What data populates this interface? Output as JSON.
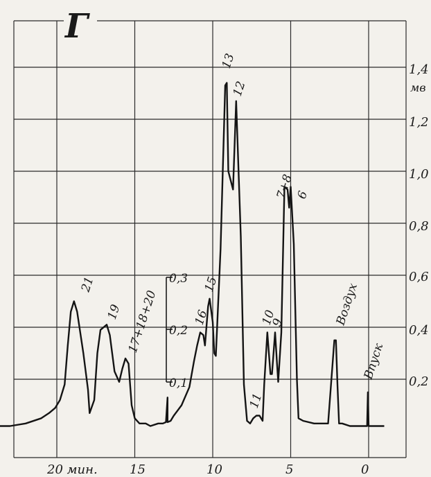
{
  "panel_letter": "Г",
  "chart_data": {
    "type": "line",
    "x_ticks": [
      "20 мин.",
      "15",
      "10",
      "5",
      "0"
    ],
    "y_ticks": [
      "0,2",
      "0,4",
      "0,6",
      "0,8",
      "1,0",
      "1,2",
      "1,4"
    ],
    "y_unit": "мв",
    "inset_scale_ticks": [
      "0,1",
      "0,2",
      "0,3"
    ],
    "xlim": [
      24.5,
      0
    ],
    "ylim": [
      0,
      1.5
    ],
    "grid": true,
    "series": [
      {
        "x": [
          24.2,
          23.0,
          22.0,
          21.0,
          20.5,
          20.1,
          19.8,
          19.5,
          19.3,
          19.1,
          18.9,
          18.7,
          18.3,
          18.0,
          17.9,
          17.6,
          17.4,
          17.2,
          16.8,
          16.6,
          16.3,
          16.0,
          15.8,
          15.6,
          15.4,
          15.2,
          15.0,
          14.7,
          14.3,
          14.0,
          13.5,
          13.2,
          13.0,
          12.9,
          12.9,
          12.7,
          12.6,
          12.5,
          12.0,
          11.5,
          11.2,
          11.0,
          10.8,
          10.6,
          10.5,
          10.3,
          10.2,
          10.0,
          9.9,
          9.8,
          9.5,
          9.2,
          9.1,
          9.0,
          8.7,
          8.5,
          8.2,
          8.0,
          7.8,
          7.6,
          7.4,
          7.2,
          7.0,
          6.8,
          6.7,
          6.5,
          6.3,
          6.2,
          6.0,
          5.9,
          5.8,
          5.6,
          5.4,
          5.2,
          5.1,
          5.0,
          4.8,
          4.6,
          4.5,
          4.2,
          3.5,
          2.6,
          2.2,
          2.1,
          2.0,
          1.9,
          1.7,
          1.2,
          0.5,
          0.1,
          0.05,
          0.0,
          -0.1,
          -1.0
        ],
        "y": [
          0.02,
          0.02,
          0.03,
          0.05,
          0.07,
          0.09,
          0.12,
          0.18,
          0.33,
          0.46,
          0.5,
          0.46,
          0.3,
          0.16,
          0.07,
          0.12,
          0.3,
          0.39,
          0.41,
          0.37,
          0.23,
          0.19,
          0.24,
          0.28,
          0.26,
          0.1,
          0.05,
          0.03,
          0.03,
          0.02,
          0.03,
          0.03,
          0.035,
          0.13,
          0.035,
          0.04,
          0.05,
          0.06,
          0.1,
          0.17,
          0.27,
          0.33,
          0.38,
          0.37,
          0.33,
          0.48,
          0.51,
          0.42,
          0.3,
          0.29,
          0.7,
          1.33,
          1.34,
          1.0,
          0.93,
          1.27,
          0.75,
          0.18,
          0.04,
          0.03,
          0.05,
          0.06,
          0.06,
          0.04,
          0.18,
          0.38,
          0.22,
          0.22,
          0.38,
          0.28,
          0.19,
          0.38,
          0.94,
          0.93,
          0.86,
          0.94,
          0.72,
          0.2,
          0.05,
          0.04,
          0.03,
          0.03,
          0.35,
          0.35,
          0.18,
          0.03,
          0.03,
          0.02,
          0.02,
          0.02,
          0.15,
          0.02,
          0.02,
          0.02
        ]
      }
    ],
    "annotations": [
      {
        "text": "21",
        "x": 18.9
      },
      {
        "text": "19",
        "x": 16.8
      },
      {
        "text": "17+18+20",
        "x": 15.6
      },
      {
        "text": "16",
        "x": 10.8
      },
      {
        "text": "15",
        "x": 10.2
      },
      {
        "text": "13",
        "x": 9.2
      },
      {
        "text": "12",
        "x": 8.5
      },
      {
        "text": "11",
        "x": 7.2
      },
      {
        "text": "10",
        "x": 6.5
      },
      {
        "text": "9",
        "x": 5.9
      },
      {
        "text": "7+8",
        "x": 5.4
      },
      {
        "text": "6",
        "x": 4.9
      },
      {
        "text": "Воздух",
        "x": 1.9
      },
      {
        "text": "Впуск",
        "x": 0.0
      }
    ]
  }
}
